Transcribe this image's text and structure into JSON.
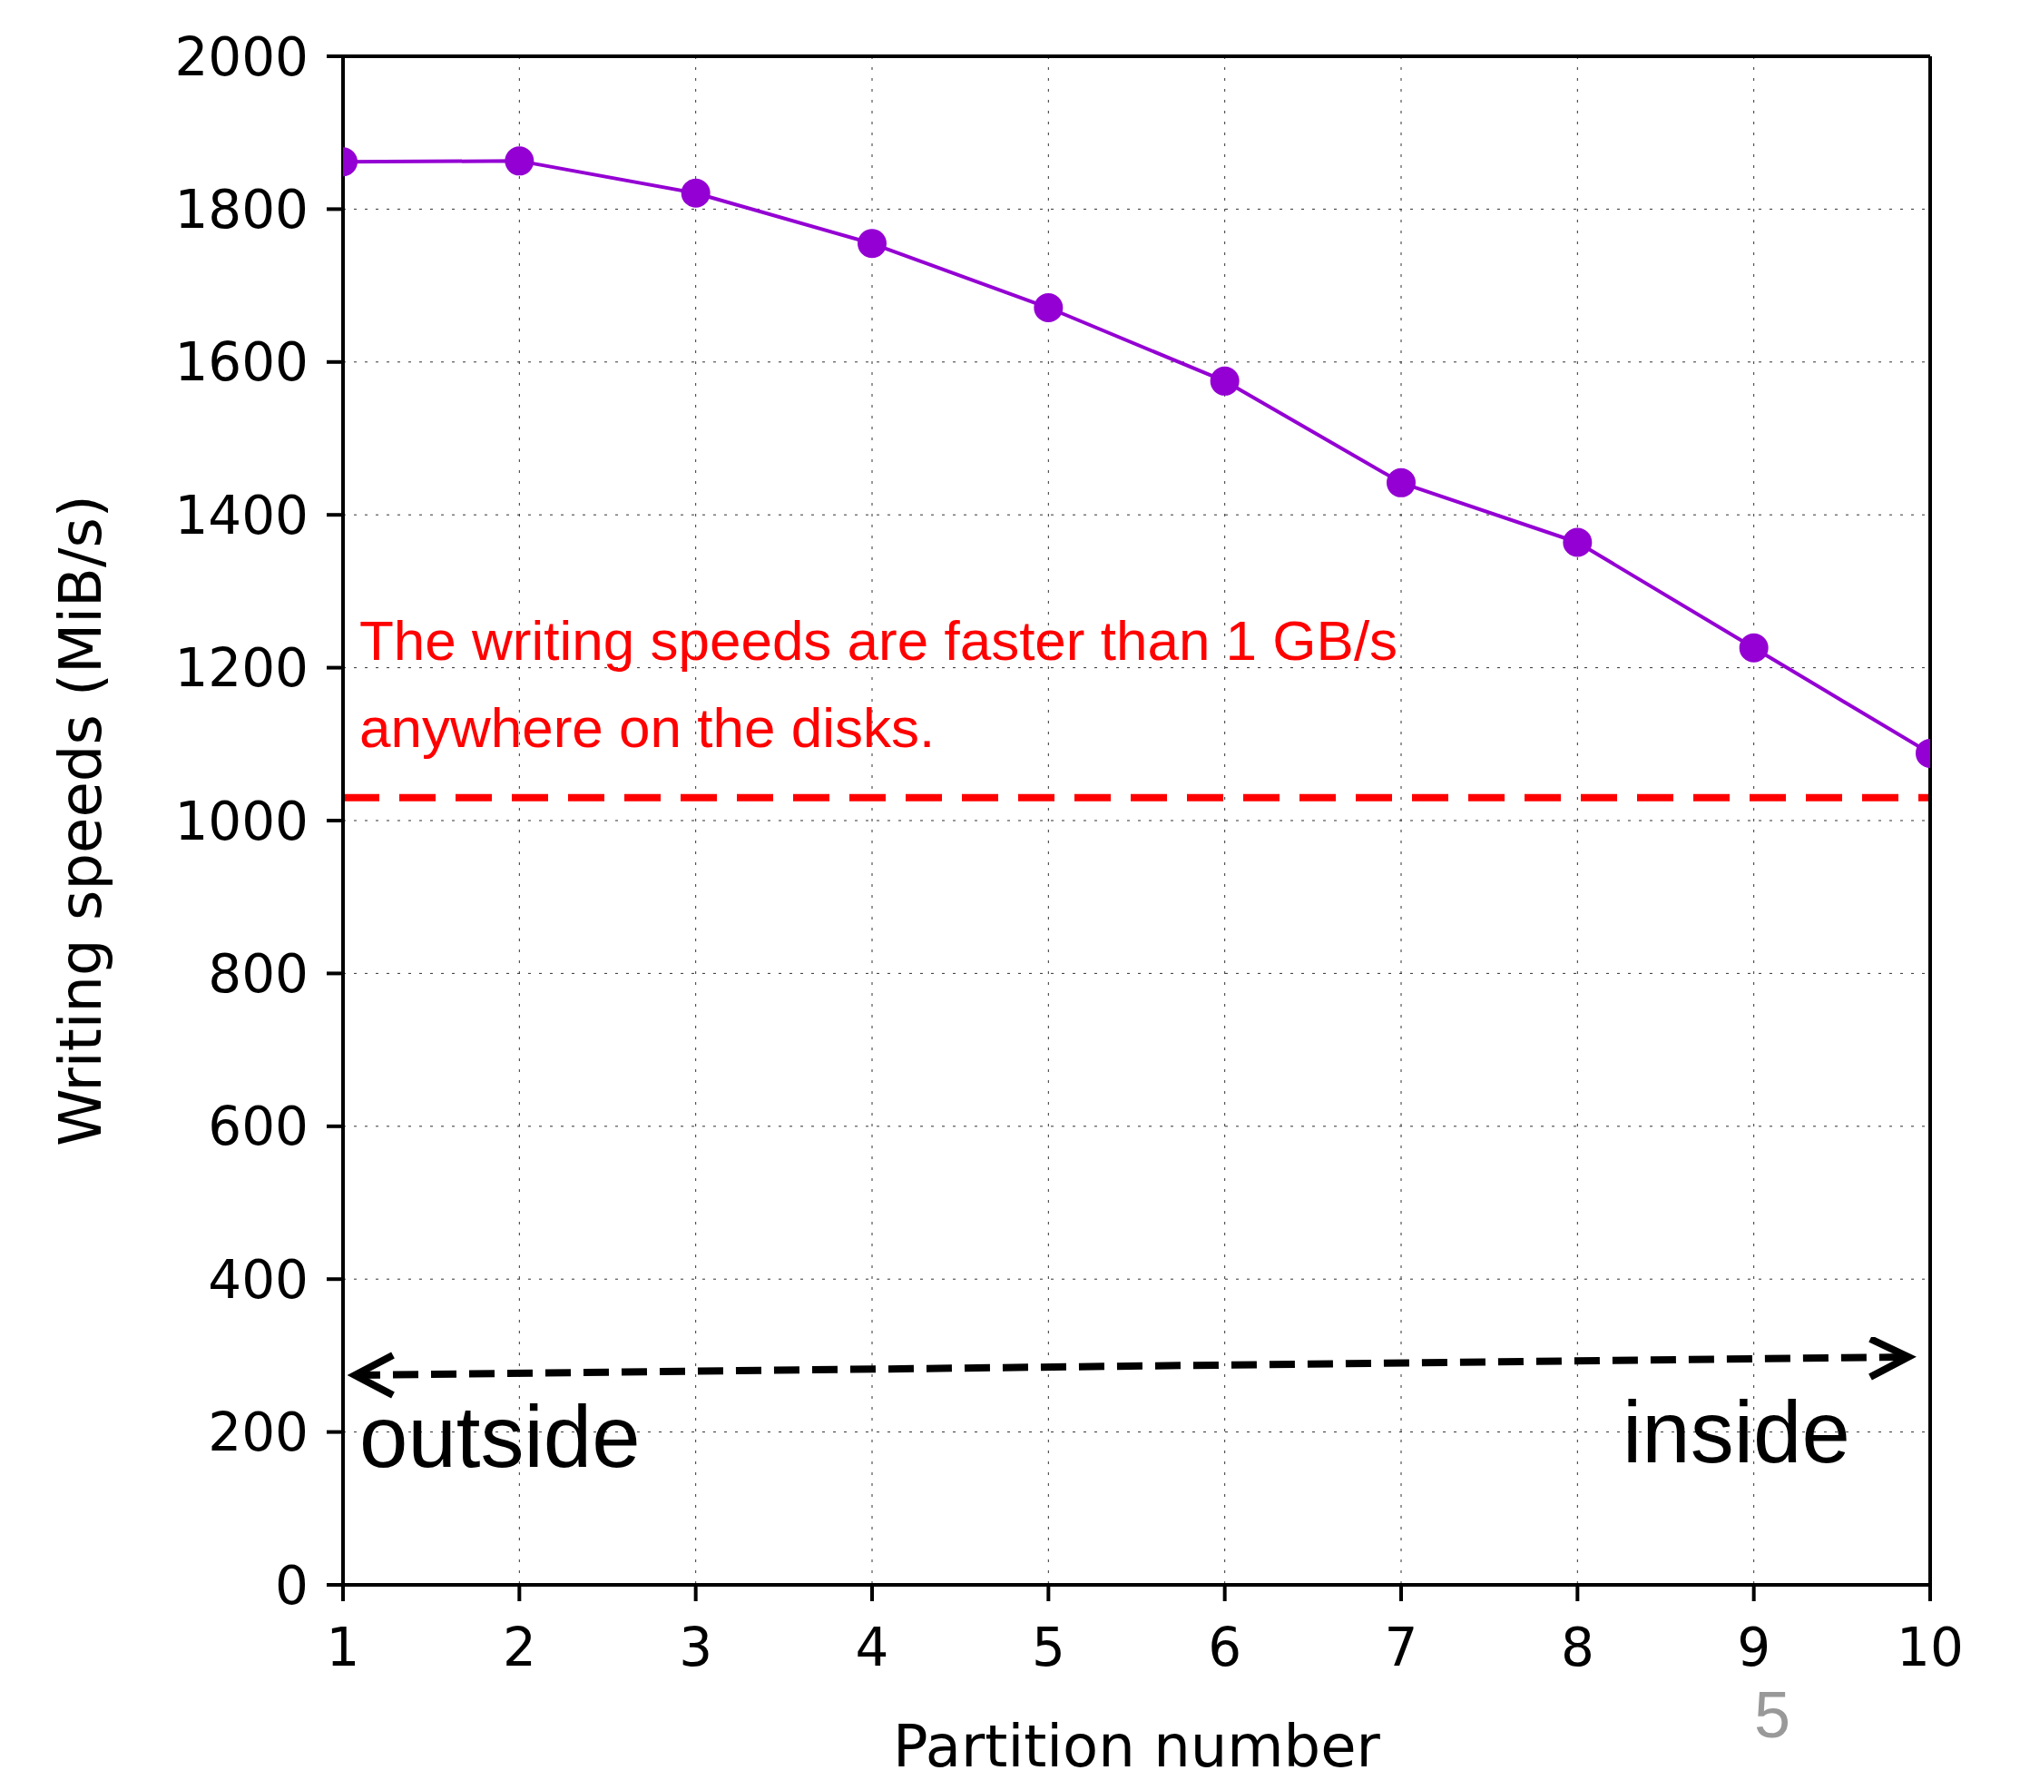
{
  "chart_data": {
    "type": "line",
    "xlabel": "Partition number",
    "ylabel": "Writing speeds (MiB/s)",
    "x": [
      1,
      2,
      3,
      4,
      5,
      6,
      7,
      8,
      9,
      10
    ],
    "series": [
      {
        "color": "#9400d3",
        "values": [
          1862,
          1863,
          1821,
          1755,
          1671,
          1575,
          1442,
          1364,
          1226,
          1088
        ]
      }
    ],
    "xlim": [
      1,
      10
    ],
    "xticks": [
      1,
      2,
      3,
      4,
      5,
      6,
      7,
      8,
      9,
      10
    ],
    "ylim": [
      0,
      2000
    ],
    "yticks": [
      0,
      200,
      400,
      600,
      800,
      1000,
      1200,
      1400,
      1600,
      1800,
      2000
    ],
    "grid": true,
    "marker": "circle",
    "line_style": "solid",
    "legend": false,
    "ref_lines": [
      {
        "axis": "y",
        "value": 1030,
        "color": "#ff0000",
        "line_style": "dashed"
      }
    ],
    "annotations": [
      "The writing speeds are faster than 1 GB/s anywhere on the disks.",
      "outside",
      "inside",
      "5"
    ]
  }
}
